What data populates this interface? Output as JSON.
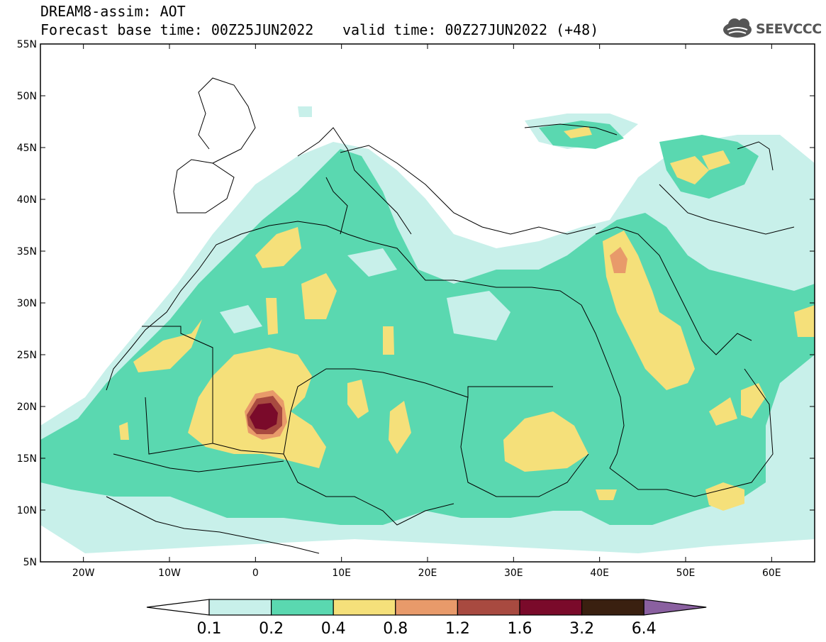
{
  "header": {
    "title": "DREAM8-assim: AOT",
    "base_time": "Forecast base time: 00Z25JUN2022",
    "valid_time": "valid time: 00Z27JUN2022 (+48)",
    "logo_text": "SEEVCCC"
  },
  "map": {
    "lon_range": [
      -25,
      65
    ],
    "lat_range": [
      5,
      55
    ],
    "lat_labels": [
      "55N",
      "50N",
      "45N",
      "40N",
      "35N",
      "30N",
      "25N",
      "20N",
      "15N",
      "10N",
      "5N"
    ],
    "lat_values": [
      55,
      50,
      45,
      40,
      35,
      30,
      25,
      20,
      15,
      10,
      5
    ],
    "lon_labels": [
      "20W",
      "10W",
      "0",
      "10E",
      "20E",
      "30E",
      "40E",
      "50E",
      "60E"
    ],
    "lon_values": [
      -20,
      -10,
      0,
      10,
      20,
      30,
      40,
      50,
      60
    ]
  },
  "colorbar": {
    "colors": [
      "#c8f0ea",
      "#5ad8b0",
      "#f5e07a",
      "#e89a6a",
      "#a84a40",
      "#7a0a2a",
      "#3a2010",
      "#8a60a0"
    ],
    "labels": [
      "0.1",
      "0.2",
      "0.4",
      "0.8",
      "1.2",
      "1.6",
      "3.2",
      "6.4"
    ],
    "under_color": "#ffffff",
    "over_color": "#8a60a0"
  }
}
